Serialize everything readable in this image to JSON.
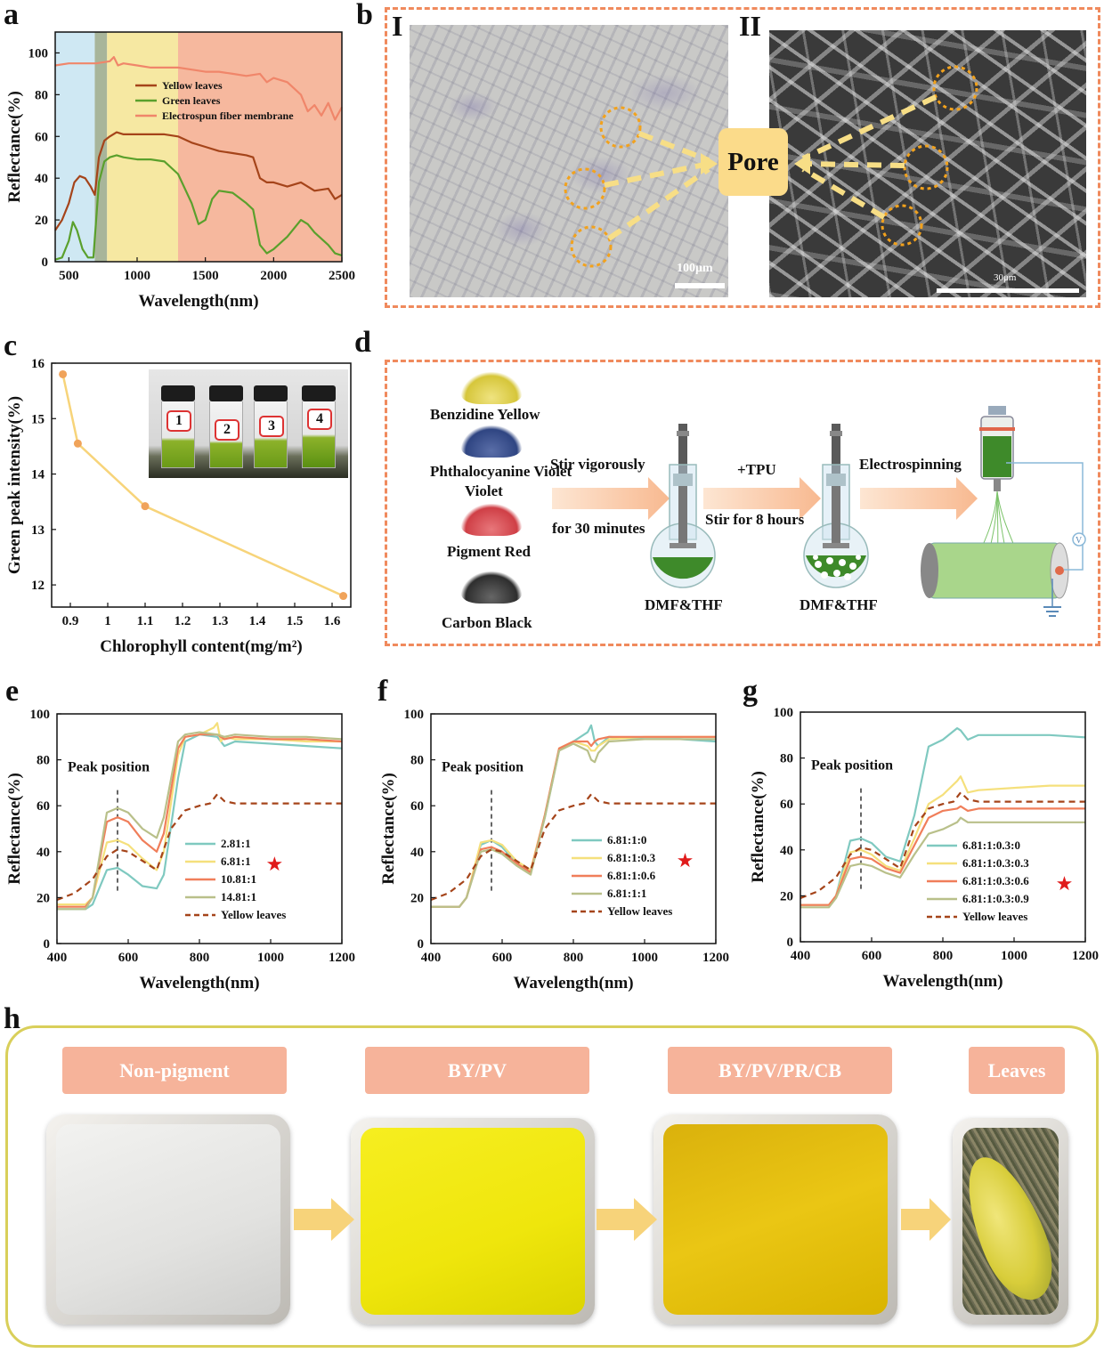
{
  "panels": {
    "a": "a",
    "b": "b",
    "c": "c",
    "d": "d",
    "e": "e",
    "f": "f",
    "g": "g",
    "h": "h"
  },
  "panel_b": {
    "label_I": "I",
    "label_II": "II",
    "pore_label": "Pore",
    "scale_I": "100μm",
    "scale_II": "30μm"
  },
  "panel_d": {
    "pigments": [
      "Benzidine Yellow",
      "Phthalocyanine Violet",
      "Pigment Red",
      "Carbon Black"
    ],
    "step1_top": "Stir vigorously",
    "step1_bottom": "for 30 minutes",
    "step2_top": "+TPU",
    "step2_bottom": "Stir for 8 hours",
    "step3_top": "Electrospinning",
    "solvent1": "DMF&THF",
    "solvent2": "DMF&THF",
    "voltage_symbol": "V",
    "colors": {
      "yellow": "#e6d64a",
      "violet": "#3a4f8a",
      "red": "#d9545a",
      "black": "#3a3a3a",
      "solution": "#3e8a2a"
    }
  },
  "panel_c_inset": {
    "vials": [
      "1",
      "2",
      "3",
      "4"
    ]
  },
  "panel_h": {
    "labels": [
      "Non-pigment",
      "BY/PV",
      "BY/PV/PR/CB",
      "Leaves"
    ],
    "colors": {
      "chip": "#f6b39a",
      "frame_border": "#d9cf5a",
      "white_sample": "#e8e8e6",
      "bypv_sample": "#f2ea10",
      "bypvprcb_sample": "#e8c20a",
      "arrow": "#f7d37a"
    }
  },
  "chart_data": [
    {
      "id": "a",
      "type": "line",
      "title": "",
      "xlabel": "Wavelength(nm)",
      "ylabel": "Reflectance(%)",
      "xlim": [
        400,
        2500
      ],
      "ylim": [
        0,
        110
      ],
      "xticks": [
        500,
        1000,
        1500,
        2000,
        2500
      ],
      "yticks": [
        0,
        20,
        40,
        60,
        80,
        100
      ],
      "regions": [
        {
          "from": 400,
          "to": 690,
          "color": "#cfe8f3"
        },
        {
          "from": 690,
          "to": 780,
          "color": "#a8b59a"
        },
        {
          "from": 780,
          "to": 1300,
          "color": "#f6e8a2"
        },
        {
          "from": 1300,
          "to": 2500,
          "color": "#f6b89e"
        }
      ],
      "legend_position": "center-right",
      "series": [
        {
          "name": "Yellow  leaves",
          "color": "#a5441a",
          "x": [
            400,
            450,
            500,
            540,
            580,
            620,
            660,
            690,
            720,
            760,
            800,
            850,
            900,
            1000,
            1100,
            1200,
            1300,
            1400,
            1500,
            1600,
            1700,
            1800,
            1850,
            1900,
            1950,
            2000,
            2100,
            2200,
            2300,
            2400,
            2450,
            2500
          ],
          "y": [
            15,
            20,
            28,
            38,
            41,
            40,
            36,
            32,
            50,
            58,
            60,
            62,
            61,
            61,
            61,
            61,
            60,
            57,
            55,
            53,
            52,
            51,
            50,
            40,
            38,
            38,
            36,
            38,
            34,
            35,
            30,
            32
          ]
        },
        {
          "name": "Green leaves",
          "color": "#5aa02c",
          "x": [
            400,
            450,
            500,
            530,
            560,
            600,
            640,
            680,
            720,
            760,
            800,
            850,
            900,
            1000,
            1100,
            1200,
            1300,
            1400,
            1450,
            1500,
            1550,
            1600,
            1700,
            1800,
            1850,
            1900,
            1950,
            2000,
            2100,
            2200,
            2250,
            2300,
            2400,
            2450,
            2500
          ],
          "y": [
            1,
            2,
            10,
            19,
            15,
            6,
            2,
            2,
            38,
            48,
            50,
            51,
            50,
            49,
            49,
            48,
            42,
            28,
            18,
            20,
            30,
            34,
            33,
            28,
            25,
            8,
            4,
            6,
            12,
            20,
            18,
            14,
            8,
            4,
            3
          ]
        },
        {
          "name": "Electrospun fiber membrane",
          "color": "#f0866a",
          "x": [
            400,
            500,
            600,
            700,
            800,
            830,
            860,
            900,
            1000,
            1100,
            1200,
            1300,
            1400,
            1500,
            1600,
            1700,
            1800,
            1900,
            1950,
            2000,
            2100,
            2150,
            2200,
            2250,
            2300,
            2350,
            2400,
            2450,
            2500
          ],
          "y": [
            94,
            95,
            95,
            95,
            96,
            98,
            94,
            95,
            94,
            93,
            93,
            93,
            92,
            91,
            91,
            90,
            89,
            90,
            86,
            88,
            86,
            83,
            80,
            72,
            75,
            70,
            76,
            68,
            74
          ]
        }
      ]
    },
    {
      "id": "c",
      "type": "line",
      "xlabel": "Chlorophyll content(mg/m²)",
      "ylabel": "Green peak intensity(%)",
      "xlim": [
        0.85,
        1.65
      ],
      "ylim": [
        11.6,
        16.0
      ],
      "xticks": [
        0.9,
        1.0,
        1.1,
        1.2,
        1.3,
        1.4,
        1.5,
        1.6
      ],
      "yticks": [
        12,
        13,
        14,
        15,
        16
      ],
      "series": [
        {
          "name": "Green peak",
          "color": "#f7d47a",
          "marker_color": "#f0a35a",
          "x": [
            0.88,
            0.92,
            1.1,
            1.63
          ],
          "y": [
            15.8,
            14.55,
            13.42,
            11.8
          ]
        }
      ]
    },
    {
      "id": "e",
      "type": "line",
      "xlabel": "Wavelength(nm)",
      "ylabel": "Reflectance(%)",
      "xlim": [
        400,
        1200
      ],
      "ylim": [
        0,
        100
      ],
      "xticks": [
        400,
        600,
        800,
        1000,
        1200
      ],
      "yticks": [
        0,
        20,
        40,
        60,
        80,
        100
      ],
      "annotation": {
        "text": "Peak position",
        "x": 570
      },
      "legend_position": "center-right",
      "star_series": 1,
      "series": [
        {
          "name": "2.81:1",
          "color": "#7fc9c0",
          "x": [
            400,
            480,
            500,
            540,
            570,
            600,
            640,
            680,
            700,
            740,
            760,
            800,
            850,
            870,
            900,
            1000,
            1100,
            1200
          ],
          "y": [
            15,
            15,
            17,
            32,
            33,
            30,
            25,
            24,
            30,
            72,
            88,
            91,
            90,
            86,
            88,
            87,
            86,
            85
          ]
        },
        {
          "name": "6.81:1",
          "color": "#f5e07c",
          "x": [
            400,
            480,
            500,
            540,
            570,
            600,
            640,
            680,
            700,
            740,
            760,
            800,
            840,
            850,
            860,
            870,
            900,
            1000,
            1100,
            1200
          ],
          "y": [
            17,
            17,
            20,
            44,
            45,
            43,
            37,
            32,
            40,
            82,
            90,
            91,
            94,
            96,
            88,
            90,
            89,
            89,
            88,
            88
          ]
        },
        {
          "name": "10.81:1",
          "color": "#f07e5a",
          "x": [
            400,
            480,
            500,
            540,
            570,
            600,
            640,
            680,
            700,
            740,
            760,
            800,
            850,
            870,
            900,
            1000,
            1100,
            1200
          ],
          "y": [
            16,
            16,
            20,
            53,
            55,
            53,
            45,
            40,
            48,
            85,
            90,
            91,
            91,
            89,
            90,
            89,
            89,
            88
          ]
        },
        {
          "name": "14.81:1",
          "color": "#b9c08a",
          "x": [
            400,
            480,
            500,
            540,
            570,
            600,
            640,
            680,
            700,
            740,
            760,
            800,
            850,
            870,
            900,
            1000,
            1100,
            1200
          ],
          "y": [
            15,
            15,
            20,
            57,
            59,
            57,
            50,
            46,
            55,
            88,
            91,
            92,
            91,
            90,
            91,
            90,
            90,
            89
          ]
        },
        {
          "name": "Yellow leaves",
          "color": "#a5441a",
          "dashed": true,
          "x": [
            400,
            450,
            500,
            540,
            570,
            600,
            640,
            680,
            720,
            760,
            800,
            830,
            850,
            870,
            900,
            1000,
            1100,
            1200
          ],
          "y": [
            19,
            22,
            28,
            38,
            41,
            40,
            36,
            32,
            50,
            58,
            60,
            61,
            65,
            62,
            61,
            61,
            61,
            61
          ]
        }
      ]
    },
    {
      "id": "f",
      "type": "line",
      "xlabel": "Wavelength(nm)",
      "ylabel": "Reflectance(%)",
      "xlim": [
        400,
        1200
      ],
      "ylim": [
        0,
        100
      ],
      "xticks": [
        400,
        600,
        800,
        1000,
        1200
      ],
      "yticks": [
        0,
        20,
        40,
        60,
        80,
        100
      ],
      "annotation": {
        "text": "Peak position",
        "x": 570
      },
      "legend_position": "center-right",
      "star_series": 1,
      "series": [
        {
          "name": "6.81:1:0",
          "color": "#7fc9c0",
          "x": [
            400,
            480,
            500,
            540,
            570,
            600,
            640,
            680,
            720,
            760,
            800,
            840,
            850,
            860,
            870,
            900,
            1000,
            1100,
            1200
          ],
          "y": [
            16,
            16,
            20,
            43,
            45,
            42,
            35,
            31,
            55,
            84,
            88,
            92,
            95,
            88,
            86,
            90,
            89,
            89,
            88
          ]
        },
        {
          "name": "6.81:1:0.3",
          "color": "#f5e07c",
          "x": [
            400,
            480,
            500,
            540,
            570,
            600,
            640,
            680,
            720,
            760,
            800,
            840,
            850,
            860,
            870,
            900,
            1000,
            1100,
            1200
          ],
          "y": [
            16,
            16,
            20,
            44,
            45,
            43,
            36,
            32,
            56,
            85,
            88,
            86,
            84,
            84,
            86,
            89,
            90,
            90,
            90
          ]
        },
        {
          "name": "6.81:1:0.6",
          "color": "#f07e5a",
          "x": [
            400,
            480,
            500,
            540,
            570,
            600,
            640,
            680,
            720,
            760,
            800,
            840,
            850,
            860,
            870,
            900,
            1000,
            1100,
            1200
          ],
          "y": [
            16,
            16,
            20,
            41,
            42,
            40,
            35,
            31,
            56,
            85,
            88,
            88,
            86,
            88,
            89,
            90,
            90,
            90,
            90
          ]
        },
        {
          "name": "6.81:1:1",
          "color": "#b9c08a",
          "x": [
            400,
            480,
            500,
            540,
            570,
            600,
            640,
            680,
            720,
            760,
            800,
            840,
            850,
            860,
            870,
            900,
            1000,
            1100,
            1200
          ],
          "y": [
            16,
            16,
            20,
            40,
            41,
            39,
            34,
            30,
            55,
            84,
            87,
            84,
            80,
            79,
            83,
            88,
            89,
            89,
            89
          ]
        },
        {
          "name": "Yellow leaves",
          "color": "#a5441a",
          "dashed": true,
          "x": [
            400,
            450,
            500,
            540,
            570,
            600,
            640,
            680,
            720,
            760,
            800,
            830,
            850,
            870,
            900,
            1000,
            1100,
            1200
          ],
          "y": [
            19,
            22,
            28,
            38,
            41,
            40,
            36,
            32,
            50,
            58,
            60,
            61,
            65,
            62,
            61,
            61,
            61,
            61
          ]
        }
      ]
    },
    {
      "id": "g",
      "type": "line",
      "xlabel": "Wavelength(nm)",
      "ylabel": "Reflectance(%)",
      "xlim": [
        400,
        1200
      ],
      "ylim": [
        0,
        100
      ],
      "xticks": [
        400,
        600,
        800,
        1000,
        1200
      ],
      "yticks": [
        0,
        20,
        40,
        60,
        80,
        100
      ],
      "annotation": {
        "text": "Peak position",
        "x": 570
      },
      "legend_position": "center-right",
      "star_series": 2,
      "series": [
        {
          "name": "6.81:1:0.3:0",
          "color": "#7fc9c0",
          "x": [
            400,
            480,
            500,
            540,
            570,
            600,
            640,
            680,
            720,
            760,
            800,
            840,
            850,
            870,
            900,
            1000,
            1100,
            1200
          ],
          "y": [
            16,
            16,
            20,
            44,
            45,
            43,
            37,
            35,
            55,
            85,
            88,
            93,
            92,
            88,
            90,
            90,
            90,
            89
          ]
        },
        {
          "name": "6.81:1:0.3:0.3",
          "color": "#f5e07c",
          "x": [
            400,
            480,
            500,
            540,
            570,
            600,
            640,
            680,
            720,
            760,
            800,
            840,
            850,
            870,
            900,
            1000,
            1100,
            1200
          ],
          "y": [
            16,
            16,
            20,
            39,
            40,
            38,
            33,
            31,
            45,
            60,
            64,
            70,
            72,
            65,
            66,
            67,
            68,
            68
          ]
        },
        {
          "name": "6.81:1:0.3:0.6",
          "color": "#f07e5a",
          "x": [
            400,
            480,
            500,
            540,
            570,
            600,
            640,
            680,
            720,
            760,
            800,
            840,
            850,
            870,
            900,
            1000,
            1100,
            1200
          ],
          "y": [
            16,
            16,
            20,
            36,
            37,
            36,
            32,
            30,
            42,
            54,
            57,
            58,
            59,
            57,
            58,
            58,
            58,
            58
          ]
        },
        {
          "name": "6.81:1:0.3:0.9",
          "color": "#b9c08a",
          "x": [
            400,
            480,
            500,
            540,
            570,
            600,
            640,
            680,
            720,
            760,
            800,
            840,
            850,
            870,
            900,
            1000,
            1100,
            1200
          ],
          "y": [
            15,
            15,
            19,
            33,
            34,
            33,
            30,
            28,
            38,
            47,
            49,
            52,
            54,
            52,
            52,
            52,
            52,
            52
          ]
        },
        {
          "name": "Yellow leaves",
          "color": "#a5441a",
          "dashed": true,
          "x": [
            400,
            450,
            500,
            540,
            570,
            600,
            640,
            680,
            720,
            760,
            800,
            830,
            850,
            870,
            900,
            1000,
            1100,
            1200
          ],
          "y": [
            19,
            22,
            28,
            38,
            41,
            40,
            36,
            32,
            50,
            58,
            60,
            61,
            65,
            62,
            61,
            61,
            61,
            61
          ]
        }
      ]
    }
  ]
}
